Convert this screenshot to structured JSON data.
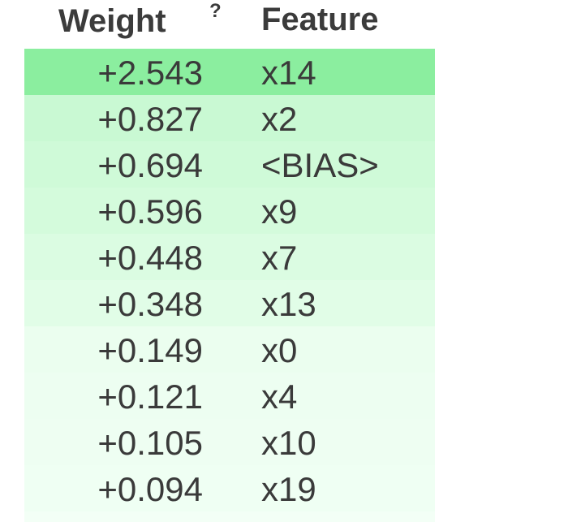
{
  "table": {
    "weight_header": "Weight",
    "weight_help": "?",
    "feature_header": "Feature",
    "rows": [
      {
        "weight": "+2.543",
        "feature": "x14",
        "color": "#8bee9f"
      },
      {
        "weight": "+0.827",
        "feature": "x2",
        "color": "#c9f9d3"
      },
      {
        "weight": "+0.694",
        "feature": "<BIAS>",
        "color": "#cffad8"
      },
      {
        "weight": "+0.596",
        "feature": "x9",
        "color": "#d4fbdc"
      },
      {
        "weight": "+0.448",
        "feature": "x7",
        "color": "#dbfce2"
      },
      {
        "weight": "+0.348",
        "feature": "x13",
        "color": "#e1fde7"
      },
      {
        "weight": "+0.149",
        "feature": "x0",
        "color": "#ebfeef"
      },
      {
        "weight": "+0.121",
        "feature": "x4",
        "color": "#edfef1"
      },
      {
        "weight": "+0.105",
        "feature": "x10",
        "color": "#eefef2"
      },
      {
        "weight": "+0.094",
        "feature": "x19",
        "color": "#effff3"
      }
    ]
  }
}
